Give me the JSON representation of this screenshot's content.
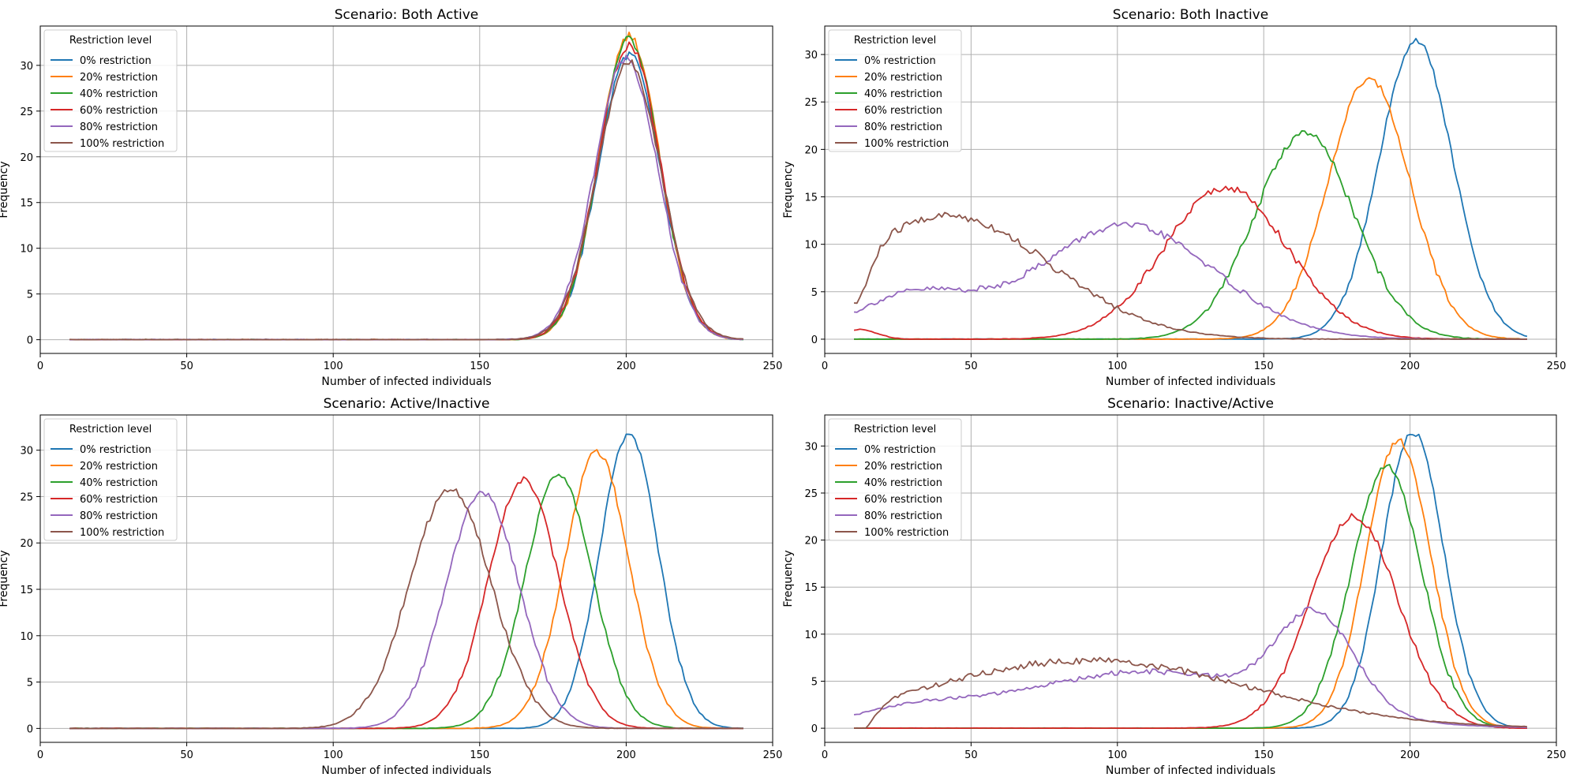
{
  "colors": [
    "#1f77b4",
    "#ff7f0e",
    "#2ca02c",
    "#d62728",
    "#9467bd",
    "#8c564b"
  ],
  "chart_data": [
    {
      "type": "line",
      "title": "Scenario: Both Active",
      "xlabel": "Number of infected individuals",
      "ylabel": "Frequency",
      "xlim": [
        0,
        250
      ],
      "ylim": [
        -1.5,
        34.3
      ],
      "xticks": [
        0,
        50,
        100,
        150,
        200,
        250
      ],
      "yticks": [
        0,
        5,
        10,
        15,
        20,
        25,
        30
      ],
      "grid": true,
      "legend": {
        "title": "Restriction level",
        "placement": "upper-left"
      },
      "series": [
        {
          "name": "0% restriction",
          "mu": 201,
          "sigma": 10.5,
          "amp": 31.2,
          "bumps": [],
          "noise": 0.45
        },
        {
          "name": "20% restriction",
          "mu": 201,
          "sigma": 10.3,
          "amp": 33.3,
          "bumps": [],
          "noise": 0.45
        },
        {
          "name": "40% restriction",
          "mu": 201,
          "sigma": 10.4,
          "amp": 32.9,
          "bumps": [],
          "noise": 0.45
        },
        {
          "name": "60% restriction",
          "mu": 201,
          "sigma": 10.6,
          "amp": 32.2,
          "bumps": [],
          "noise": 0.45
        },
        {
          "name": "80% restriction",
          "mu": 200,
          "sigma": 10.8,
          "amp": 30.8,
          "bumps": [],
          "noise": 0.45
        },
        {
          "name": "100% restriction",
          "mu": 201,
          "sigma": 11.0,
          "amp": 30.3,
          "bumps": [],
          "noise": 0.45
        }
      ]
    },
    {
      "type": "line",
      "title": "Scenario: Both Inactive",
      "xlabel": "Number of infected individuals",
      "ylabel": "Frequency",
      "xlim": [
        0,
        250
      ],
      "ylim": [
        -1.5,
        33.0
      ],
      "xticks": [
        0,
        50,
        100,
        150,
        200,
        250
      ],
      "yticks": [
        0,
        5,
        10,
        15,
        20,
        25,
        30
      ],
      "grid": true,
      "legend": {
        "title": "Restriction level",
        "placement": "upper-left"
      },
      "series": [
        {
          "name": "0% restriction",
          "mu": 202,
          "sigma": 12.5,
          "amp": 31.5,
          "bumps": [],
          "noise": 0.35
        },
        {
          "name": "20% restriction",
          "mu": 186,
          "sigma": 14.0,
          "amp": 27.5,
          "bumps": [],
          "noise": 0.35
        },
        {
          "name": "40% restriction",
          "mu": 164,
          "sigma": 17.0,
          "amp": 21.7,
          "bumps": [],
          "noise": 0.4
        },
        {
          "name": "60% restriction",
          "mu": 137,
          "sigma": 21.0,
          "amp": 16.0,
          "bumps": [
            {
              "mu": 12,
              "sigma": 6,
              "amp": 1.0
            }
          ],
          "noise": 0.4
        },
        {
          "name": "80% restriction",
          "mu": 103,
          "sigma": 30.0,
          "amp": 12.0,
          "bumps": [
            {
              "mu": 30,
              "sigma": 20,
              "amp": 4.5
            }
          ],
          "noise": 0.35
        },
        {
          "name": "100% restriction",
          "mu": 42,
          "sigma": 35.0,
          "amp": 13.0,
          "bumps": [
            {
              "mu": 10,
              "sigma": 5,
              "amp": -5
            }
          ],
          "noise": 0.45
        }
      ]
    },
    {
      "type": "line",
      "title": "Scenario: Active/Inactive",
      "xlabel": "Number of infected individuals",
      "ylabel": "Frequency",
      "xlim": [
        0,
        250
      ],
      "ylim": [
        -1.5,
        33.8
      ],
      "xticks": [
        0,
        50,
        100,
        150,
        200,
        250
      ],
      "yticks": [
        0,
        5,
        10,
        15,
        20,
        25,
        30
      ],
      "grid": true,
      "legend": {
        "title": "Restriction level",
        "placement": "upper-left"
      },
      "series": [
        {
          "name": "0% restriction",
          "mu": 201,
          "sigma": 10.0,
          "amp": 31.8,
          "bumps": [],
          "noise": 0.35
        },
        {
          "name": "20% restriction",
          "mu": 190,
          "sigma": 11.0,
          "amp": 29.8,
          "bumps": [],
          "noise": 0.35
        },
        {
          "name": "40% restriction",
          "mu": 177,
          "sigma": 11.5,
          "amp": 27.3,
          "bumps": [],
          "noise": 0.35
        },
        {
          "name": "60% restriction",
          "mu": 165,
          "sigma": 12.0,
          "amp": 26.8,
          "bumps": [],
          "noise": 0.35
        },
        {
          "name": "80% restriction",
          "mu": 151,
          "sigma": 12.5,
          "amp": 25.4,
          "bumps": [],
          "noise": 0.35
        },
        {
          "name": "100% restriction",
          "mu": 140,
          "sigma": 14.0,
          "amp": 25.8,
          "bumps": [],
          "noise": 0.4
        }
      ]
    },
    {
      "type": "line",
      "title": "Scenario: Inactive/Active",
      "xlabel": "Number of infected individuals",
      "ylabel": "Frequency",
      "xlim": [
        0,
        250
      ],
      "ylim": [
        -1.5,
        33.3
      ],
      "xticks": [
        0,
        50,
        100,
        150,
        200,
        250
      ],
      "yticks": [
        0,
        5,
        10,
        15,
        20,
        25,
        30
      ],
      "grid": true,
      "legend": {
        "title": "Restriction level",
        "placement": "upper-left"
      },
      "series": [
        {
          "name": "0% restriction",
          "mu": 201,
          "sigma": 10.5,
          "amp": 31.5,
          "bumps": [],
          "noise": 0.35
        },
        {
          "name": "20% restriction",
          "mu": 196,
          "sigma": 11.0,
          "amp": 30.6,
          "bumps": [],
          "noise": 0.35
        },
        {
          "name": "40% restriction",
          "mu": 192,
          "sigma": 12.0,
          "amp": 27.8,
          "bumps": [],
          "noise": 0.35
        },
        {
          "name": "60% restriction",
          "mu": 181,
          "sigma": 15.0,
          "amp": 22.5,
          "bumps": [],
          "noise": 0.4
        },
        {
          "name": "80% restriction",
          "mu": 168,
          "sigma": 13.0,
          "amp": 10.0,
          "bumps": [
            {
              "mu": 110,
              "sigma": 45,
              "amp": 6.0
            },
            {
              "mu": 30,
              "sigma": 20,
              "amp": 1.5
            }
          ],
          "noise": 0.3
        },
        {
          "name": "100% restriction",
          "mu": 90,
          "sigma": 55,
          "amp": 7.2,
          "bumps": [
            {
              "mu": 10,
              "sigma": 6,
              "amp": -3.5
            }
          ],
          "noise": 0.35
        }
      ]
    }
  ]
}
